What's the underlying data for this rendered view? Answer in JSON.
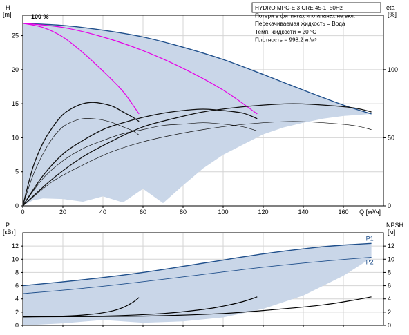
{
  "chart_data": [
    {
      "type": "line",
      "id": "head-efficiency",
      "x_unit_label": "Q [м³/ч]",
      "xlim": [
        0,
        180
      ],
      "xticks": [
        0,
        20,
        40,
        60,
        80,
        100,
        120,
        140,
        160
      ],
      "left_axis": {
        "label_line1": "H",
        "label_line2": "[m]",
        "ylim": [
          0,
          28
        ],
        "ticks": [
          0,
          5,
          10,
          15,
          20,
          25
        ]
      },
      "right_axis": {
        "label_line1": "eta",
        "label_line2": "[%]",
        "ylim": [
          0,
          140
        ],
        "ticks": [
          0,
          50,
          100
        ]
      },
      "grid": true,
      "annotation": "100 %",
      "legend_box": [
        "HYDRO MPC-E 3 CRE 45-1, 50Hz",
        "Потери в фитингах и клапанах не вкл.",
        "Перекачиваемая жидкость = Вода",
        "Темп. жидкости = 20 °C",
        "Плотность = 998.2 кг/м³"
      ],
      "colors": {
        "max_curve": "#1f4f8b",
        "pump_curve": "#e600e6",
        "envelope": "#c9d6e8",
        "efficiency": "#111111"
      },
      "envelope_upper": {
        "x": [
          0,
          20,
          40,
          60,
          80,
          100,
          120,
          140,
          160,
          174
        ],
        "y": [
          26.8,
          26.5,
          25.8,
          24.8,
          23.3,
          21.5,
          19.3,
          17,
          14.8,
          13.5
        ]
      },
      "envelope_lower": {
        "x": [
          0,
          5,
          10,
          20,
          30,
          40,
          50,
          60,
          70,
          80,
          90,
          100,
          110,
          120,
          130,
          140,
          150,
          160,
          174
        ],
        "y": [
          0,
          0.8,
          1.1,
          1.0,
          0.6,
          1.4,
          0.5,
          2.5,
          0.4,
          3.0,
          5.5,
          7.5,
          9,
          10.5,
          11.5,
          12.2,
          12.8,
          13.2,
          13.5
        ]
      },
      "series": [
        {
          "role": "max",
          "x": [
            0,
            20,
            40,
            60,
            80,
            100,
            120,
            140,
            160,
            174
          ],
          "y": [
            26.8,
            26.5,
            25.8,
            24.8,
            23.3,
            21.5,
            19.3,
            17,
            14.8,
            13.5
          ]
        },
        {
          "role": "pump",
          "x": [
            0,
            10,
            20,
            30,
            40,
            50,
            58
          ],
          "y": [
            26.8,
            26.2,
            24.8,
            22.5,
            19.8,
            16.8,
            13.5
          ]
        },
        {
          "role": "pump",
          "x": [
            0,
            20,
            40,
            60,
            80,
            100,
            117
          ],
          "y": [
            26.8,
            26.2,
            24.8,
            22.8,
            20.2,
            17,
            13.5
          ]
        },
        {
          "role": "efficiency",
          "x": [
            0,
            5,
            10,
            15,
            20,
            25,
            30,
            35,
            40,
            45,
            50,
            55,
            58
          ],
          "y": [
            0,
            22,
            38,
            50,
            58,
            62,
            64,
            64,
            63,
            61,
            58,
            55,
            52
          ]
        },
        {
          "role": "efficiency",
          "x": [
            0,
            5,
            10,
            15,
            20,
            25,
            30,
            35,
            40,
            45,
            50,
            55,
            58
          ],
          "y": [
            0,
            28,
            46,
            58,
            67,
            72,
            75,
            76,
            75,
            73,
            69,
            65,
            62
          ]
        },
        {
          "role": "efficiency",
          "x": [
            0,
            10,
            20,
            30,
            40,
            50,
            60,
            70,
            80,
            90,
            100,
            110,
            117
          ],
          "y": [
            0,
            20,
            33,
            42,
            48,
            53,
            56,
            59,
            60,
            61,
            60,
            58,
            55
          ]
        },
        {
          "role": "efficiency",
          "x": [
            0,
            10,
            20,
            30,
            40,
            50,
            60,
            70,
            80,
            90,
            100,
            110,
            117
          ],
          "y": [
            0,
            22,
            38,
            48,
            56,
            61,
            65,
            68,
            70,
            71,
            70,
            68,
            64
          ]
        },
        {
          "role": "efficiency",
          "x": [
            0,
            15,
            30,
            45,
            60,
            75,
            90,
            105,
            120,
            135,
            150,
            165,
            174
          ],
          "y": [
            0,
            18,
            30,
            40,
            47,
            52,
            56,
            59,
            61,
            62,
            61,
            59,
            56
          ]
        },
        {
          "role": "efficiency",
          "x": [
            0,
            15,
            30,
            45,
            60,
            75,
            90,
            105,
            120,
            135,
            150,
            165,
            174
          ],
          "y": [
            0,
            20,
            36,
            48,
            58,
            64,
            69,
            72,
            74,
            75,
            74,
            72,
            69
          ]
        }
      ]
    },
    {
      "type": "line",
      "id": "power-npsh",
      "xlim": [
        0,
        180
      ],
      "xticks": [
        0,
        20,
        40,
        60,
        80,
        100,
        120,
        140,
        160
      ],
      "left_axis": {
        "label_line1": "P",
        "label_line2": "[кВт]",
        "ylim": [
          0,
          14
        ],
        "ticks": [
          0,
          2,
          4,
          6,
          8,
          10,
          12
        ]
      },
      "right_axis": {
        "label_line1": "NPSH",
        "label_line2": "[м]",
        "ylim": [
          0,
          14
        ],
        "ticks": [
          0,
          2,
          4,
          6,
          8,
          10,
          12
        ]
      },
      "grid": true,
      "colors": {
        "p1": "#1f4f8b",
        "pump": "#e600e6",
        "envelope": "#c9d6e8",
        "npsh": "#000000"
      },
      "envelope_upper": {
        "x": [
          0,
          30,
          60,
          90,
          120,
          150,
          174
        ],
        "y": [
          6,
          6.9,
          8,
          9.4,
          10.8,
          11.9,
          12.4
        ]
      },
      "envelope_lower": {
        "x": [
          0,
          20,
          40,
          60,
          80,
          100,
          120,
          140,
          160,
          174
        ],
        "y": [
          0,
          0.3,
          0.8,
          0.4,
          0.6,
          1.2,
          2.5,
          4.5,
          7.5,
          10.2
        ]
      },
      "series": [
        {
          "name": "P1",
          "role": "p1",
          "x": [
            0,
            30,
            60,
            90,
            120,
            150,
            174
          ],
          "y": [
            6,
            6.9,
            8,
            9.4,
            10.8,
            11.9,
            12.4
          ]
        },
        {
          "name": "P2",
          "role": "p2",
          "x": [
            0,
            30,
            60,
            90,
            120,
            150,
            174
          ],
          "y": [
            4.8,
            5.6,
            6.6,
            7.7,
            8.8,
            9.7,
            10.3
          ]
        },
        {
          "role": "pump",
          "x": [
            0,
            20,
            40,
            58
          ],
          "y": [
            3,
            3.5,
            4,
            4.4
          ]
        },
        {
          "role": "pump",
          "x": [
            0,
            20,
            40,
            58
          ],
          "y": [
            2.2,
            2.8,
            3.3,
            3.7
          ]
        },
        {
          "role": "pump",
          "x": [
            0,
            30,
            60,
            90,
            117
          ],
          "y": [
            3.8,
            5,
            6.2,
            7.3,
            8.2
          ]
        },
        {
          "role": "pump",
          "x": [
            0,
            30,
            60,
            90,
            117
          ],
          "y": [
            3.2,
            4.3,
            5.4,
            6.3,
            7.1
          ]
        },
        {
          "role": "npsh",
          "x": [
            0,
            20,
            35,
            45,
            50,
            55,
            58
          ],
          "y": [
            1.3,
            1.4,
            1.7,
            2.2,
            2.7,
            3.5,
            4.2
          ]
        },
        {
          "role": "npsh",
          "x": [
            0,
            40,
            70,
            90,
            100,
            110,
            117
          ],
          "y": [
            1.3,
            1.4,
            1.8,
            2.4,
            2.9,
            3.6,
            4.3
          ]
        },
        {
          "role": "npsh",
          "x": [
            0,
            60,
            100,
            130,
            150,
            165,
            174
          ],
          "y": [
            1.3,
            1.4,
            1.8,
            2.5,
            3.1,
            3.8,
            4.3
          ]
        }
      ]
    }
  ]
}
